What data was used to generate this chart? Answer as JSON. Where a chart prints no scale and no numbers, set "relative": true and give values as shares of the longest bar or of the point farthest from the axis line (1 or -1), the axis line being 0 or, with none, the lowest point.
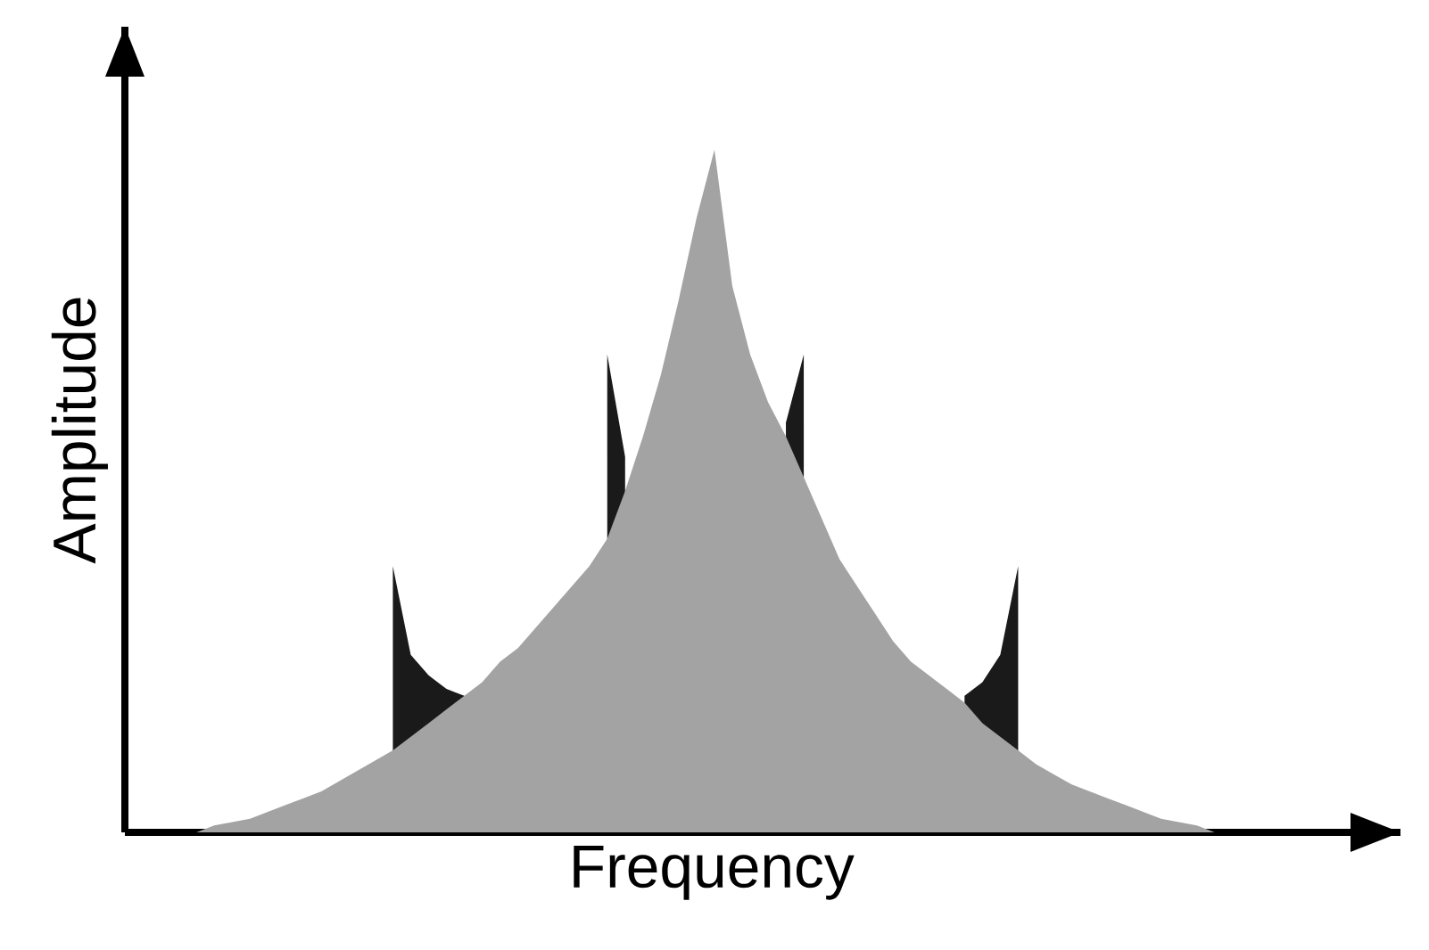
{
  "chart_data": {
    "type": "area",
    "relative": true,
    "xlabel": "Frequency",
    "ylabel": "Amplitude",
    "categories": [
      null,
      null,
      null,
      null,
      null,
      null,
      null,
      null,
      null,
      null,
      null,
      null,
      null,
      null,
      null,
      null,
      null,
      null,
      null,
      null,
      null,
      null,
      null,
      null,
      null,
      null,
      null,
      null,
      null,
      null,
      null,
      null,
      null,
      null,
      null,
      null,
      null,
      null,
      null,
      null,
      null,
      null,
      null,
      null,
      null,
      null,
      null,
      null,
      null,
      null,
      null,
      null,
      null,
      null,
      null,
      null,
      null,
      null,
      null,
      null,
      null,
      null,
      null,
      null,
      null,
      null,
      null,
      null,
      null,
      null,
      null
    ],
    "series": [
      {
        "color": "#1a1a1a",
        "values": [
          null,
          null,
          null,
          null,
          null,
          null,
          null,
          null,
          null,
          null,
          null,
          null,
          null,
          null,
          null,
          0.39,
          0.26,
          0.23,
          0.21,
          0.2,
          null,
          null,
          null,
          null,
          null,
          null,
          null,
          0.7,
          0.55,
          null,
          null,
          null,
          null,
          null,
          null,
          null,
          null,
          0.6,
          0.7,
          null,
          null,
          null,
          null,
          null,
          null,
          null,
          null,
          0.2,
          0.22,
          0.26,
          0.39,
          null,
          null,
          null,
          null,
          null,
          null,
          null,
          null,
          null,
          null,
          null,
          null,
          null,
          null,
          null,
          null,
          null,
          null,
          null,
          null
        ]
      },
      {
        "color": "#a3a3a3",
        "values": [
          0,
          0,
          0,
          0,
          0,
          0.01,
          0.015,
          0.02,
          0.03,
          0.04,
          0.05,
          0.06,
          0.075,
          0.09,
          0.105,
          0.12,
          0.14,
          0.16,
          0.18,
          0.2,
          0.22,
          0.25,
          0.27,
          0.3,
          0.33,
          0.36,
          0.39,
          0.43,
          0.5,
          0.58,
          0.67,
          0.78,
          0.9,
          1,
          0.8,
          0.7,
          0.63,
          0.58,
          0.52,
          0.46,
          0.4,
          0.36,
          0.32,
          0.28,
          0.25,
          0.23,
          0.21,
          0.19,
          0.16,
          0.14,
          0.12,
          0.1,
          0.085,
          0.07,
          0.06,
          0.05,
          0.04,
          0.03,
          0.02,
          0.015,
          0.01,
          0,
          null,
          null,
          null,
          null,
          null,
          null,
          null,
          null,
          null
        ]
      }
    ]
  }
}
